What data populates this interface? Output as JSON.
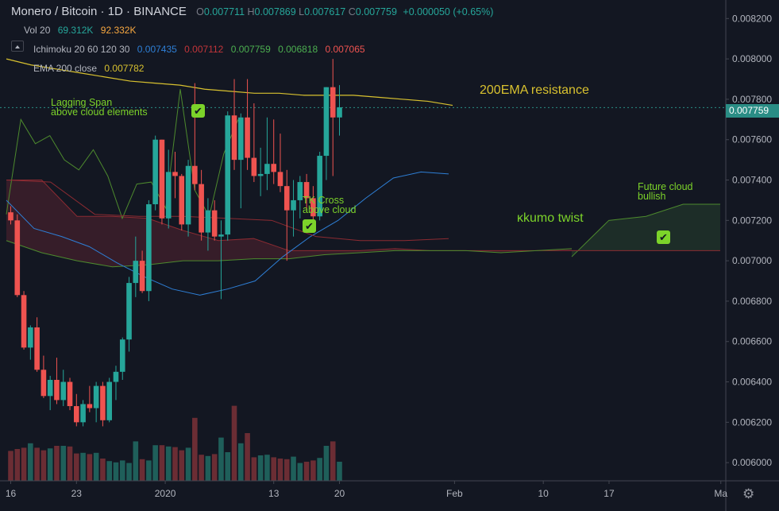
{
  "header": {
    "symbol": "Monero / Bitcoin · 1D · BINANCE",
    "o_label": "O",
    "o_value": "0.007711",
    "h_label": "H",
    "h_value": "0.007869",
    "l_label": "L",
    "l_value": "0.007617",
    "c_label": "C",
    "c_value": "0.007759",
    "change": "+0.000050 (+0.65%)"
  },
  "indicators": {
    "vol": {
      "label": "Vol 20",
      "v1": "69.312K",
      "v2": "92.332K"
    },
    "ichimoku": {
      "label": "Ichimoku 20 60 120 30",
      "v1": "0.007435",
      "v2": "0.007112",
      "v3": "0.007759",
      "v4": "0.006818",
      "v5": "0.007065"
    },
    "ema": {
      "label": "EMA 200 close",
      "v1": "0.007782"
    }
  },
  "annotations": {
    "lagging_1": "Lagging Span",
    "lagging_2": "above cloud elements",
    "tk_1": "TK Cross",
    "tk_2": "above cloud",
    "ema_res": "200EMA resistance",
    "kumo": "κkumo twist",
    "future_1": "Future cloud",
    "future_2": "bullish"
  },
  "last_price": "0.007759",
  "colors": {
    "bg": "#131722",
    "up": "#26a69a",
    "down": "#ef5350",
    "ema": "#d8c12f",
    "tenkan": "#2e7fd6",
    "kijun": "#8c2b32",
    "lagging": "#4d8a2e",
    "annotation": "#7cd32a",
    "ema_label": "#d8c12f"
  },
  "chart_data": {
    "type": "candlestick",
    "xlabels": [
      "16",
      "23",
      "2020",
      "13",
      "20",
      "Feb",
      "10",
      "17",
      "Ma"
    ],
    "yticks": [
      "0.008200",
      "0.008000",
      "0.007800",
      "0.007600",
      "0.007400",
      "0.007200",
      "0.007000",
      "0.006800",
      "0.006600",
      "0.006400",
      "0.006200",
      "0.006000"
    ],
    "ylim": [
      0.00591,
      0.00828
    ],
    "candles": [
      [
        0.00724,
        0.00727,
        0.00718,
        0.0072
      ],
      [
        0.0072,
        0.00723,
        0.00682,
        0.00683
      ],
      [
        0.00683,
        0.00685,
        0.00656,
        0.00657
      ],
      [
        0.00657,
        0.00668,
        0.00651,
        0.00667
      ],
      [
        0.00667,
        0.00672,
        0.00645,
        0.00646
      ],
      [
        0.00646,
        0.00653,
        0.00632,
        0.00633
      ],
      [
        0.00633,
        0.00643,
        0.00626,
        0.00641
      ],
      [
        0.00641,
        0.00652,
        0.00629,
        0.00631
      ],
      [
        0.00631,
        0.00646,
        0.00628,
        0.0064
      ],
      [
        0.0064,
        0.00642,
        0.00626,
        0.00628
      ],
      [
        0.00628,
        0.00634,
        0.00618,
        0.0062
      ],
      [
        0.0062,
        0.00631,
        0.00618,
        0.00629
      ],
      [
        0.00629,
        0.00638,
        0.00625,
        0.00627
      ],
      [
        0.00627,
        0.0064,
        0.0062,
        0.00638
      ],
      [
        0.00638,
        0.0064,
        0.00618,
        0.00621
      ],
      [
        0.00621,
        0.00642,
        0.0062,
        0.0064
      ],
      [
        0.0064,
        0.00648,
        0.00631,
        0.00645
      ],
      [
        0.00645,
        0.00662,
        0.00641,
        0.00661
      ],
      [
        0.00661,
        0.00692,
        0.00655,
        0.00689
      ],
      [
        0.00689,
        0.00712,
        0.00682,
        0.007
      ],
      [
        0.007,
        0.00705,
        0.00684,
        0.00685
      ],
      [
        0.00685,
        0.0073,
        0.0068,
        0.00728
      ],
      [
        0.00728,
        0.00762,
        0.00725,
        0.0076
      ],
      [
        0.0076,
        0.0076,
        0.00718,
        0.00721
      ],
      [
        0.00721,
        0.00755,
        0.00716,
        0.00744
      ],
      [
        0.00744,
        0.00754,
        0.00731,
        0.00742
      ],
      [
        0.00742,
        0.00743,
        0.00715,
        0.00718
      ],
      [
        0.00718,
        0.0075,
        0.00712,
        0.00747
      ],
      [
        0.00747,
        0.00788,
        0.00735,
        0.00738
      ],
      [
        0.00738,
        0.00745,
        0.0071,
        0.00714
      ],
      [
        0.00714,
        0.00731,
        0.00705,
        0.00725
      ],
      [
        0.00725,
        0.0073,
        0.0071,
        0.00712
      ],
      [
        0.00712,
        0.0072,
        0.00681,
        0.00713
      ],
      [
        0.00713,
        0.00774,
        0.0071,
        0.00772
      ],
      [
        0.00772,
        0.0079,
        0.00745,
        0.0075
      ],
      [
        0.0075,
        0.00773,
        0.00726,
        0.00771
      ],
      [
        0.00771,
        0.0079,
        0.00745,
        0.00751
      ],
      [
        0.00751,
        0.00778,
        0.00739,
        0.00742
      ],
      [
        0.00742,
        0.00756,
        0.00732,
        0.00743
      ],
      [
        0.00743,
        0.00771,
        0.00735,
        0.00748
      ],
      [
        0.00748,
        0.0077,
        0.00738,
        0.00744
      ],
      [
        0.00744,
        0.00763,
        0.00734,
        0.00737
      ],
      [
        0.00737,
        0.00745,
        0.007,
        0.00725
      ],
      [
        0.00725,
        0.0074,
        0.00712,
        0.0073
      ],
      [
        0.0073,
        0.00742,
        0.00721,
        0.00739
      ],
      [
        0.00739,
        0.00743,
        0.00725,
        0.00731
      ],
      [
        0.00731,
        0.00737,
        0.00718,
        0.00722
      ],
      [
        0.00722,
        0.00754,
        0.0072,
        0.00752
      ],
      [
        0.00752,
        0.00786,
        0.0074,
        0.00786
      ],
      [
        0.00786,
        0.008,
        0.00742,
        0.00771
      ],
      [
        0.00771,
        0.00787,
        0.00762,
        0.00776
      ]
    ],
    "volume": [
      0.47,
      0.5,
      0.52,
      0.59,
      0.52,
      0.48,
      0.51,
      0.55,
      0.55,
      0.54,
      0.43,
      0.44,
      0.42,
      0.44,
      0.35,
      0.31,
      0.29,
      0.32,
      0.28,
      0.62,
      0.34,
      0.32,
      0.56,
      0.56,
      0.54,
      0.53,
      0.48,
      0.52,
      0.99,
      0.41,
      0.39,
      0.42,
      0.68,
      0.45,
      1.18,
      0.59,
      0.75,
      0.37,
      0.4,
      0.41,
      0.37,
      0.35,
      0.34,
      0.38,
      0.28,
      0.3,
      0.32,
      0.36,
      0.55,
      0.62,
      0.3
    ],
    "ema200": [
      0.008,
      0.00797,
      0.00795,
      0.00793,
      0.00791,
      0.00789,
      0.00788,
      0.00787,
      0.00785,
      0.00784,
      0.00783,
      0.00783,
      0.00782,
      0.00782,
      0.00782,
      0.00781,
      0.0078,
      0.00779,
      0.00777
    ],
    "tenkan": [
      0.0073,
      0.00716,
      0.00712,
      0.00707,
      0.00699,
      0.00692,
      0.00686,
      0.00683,
      0.00686,
      0.0069,
      0.00702,
      0.00712,
      0.0072,
      0.00731,
      0.00741,
      0.00744,
      0.00743
    ],
    "kijun": [
      0.0074,
      0.00739,
      0.00723,
      0.00722,
      0.00722,
      0.00721,
      0.0072,
      0.00712,
      0.0071,
      0.0071,
      0.00711
    ],
    "lagging": [
      0.00723,
      0.0077,
      0.00758,
      0.00762,
      0.0075,
      0.00745,
      0.00755,
      0.00742,
      0.00721,
      0.00738,
      0.00739,
      0.00726,
      0.00785,
      0.00735,
      0.00722,
      0.00753,
      0.0077
    ],
    "span_a": [
      0.0071,
      0.00704,
      0.007,
      0.00697,
      0.00698,
      0.007,
      0.007,
      0.00701,
      0.00701,
      0.00703,
      0.00704,
      0.00705,
      0.00705,
      0.00705,
      0.00704,
      0.00705,
      0.00706
    ],
    "span_b": [
      0.0074,
      0.0074,
      0.00722,
      0.00722,
      0.00721,
      0.00715,
      0.0071,
      0.00711,
      0.00705,
      0.00705,
      0.00705,
      0.00706,
      0.00705
    ],
    "future_cloud_a": [
      0.00702,
      0.0072,
      0.00722,
      0.00728,
      0.00728
    ],
    "future_cloud_b": [
      0.00705,
      0.00705,
      0.00705,
      0.00705,
      0.00705
    ]
  }
}
